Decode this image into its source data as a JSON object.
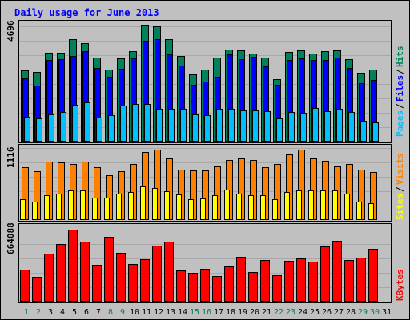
{
  "chart_data": {
    "type": "bar",
    "title": "Daily usage for June 2013",
    "days": [
      "1",
      "2",
      "3",
      "4",
      "5",
      "6",
      "7",
      "8",
      "9",
      "10",
      "11",
      "12",
      "13",
      "14",
      "15",
      "16",
      "17",
      "18",
      "19",
      "20",
      "21",
      "22",
      "23",
      "24",
      "25",
      "26",
      "27",
      "28",
      "29",
      "30",
      "31"
    ],
    "weekend_days": [
      "1",
      "2",
      "8",
      "9",
      "15",
      "16",
      "22",
      "23",
      "29",
      "30"
    ],
    "panels": [
      {
        "id": "hits_files_pages",
        "ymax": 4696,
        "ymax_label": "4696",
        "series": [
          {
            "name": "Hits",
            "color": "#00805c",
            "values": [
              2790,
              2730,
              3500,
              3500,
              4040,
              3870,
              3300,
              2830,
              3290,
              3570,
              4600,
              4540,
              4040,
              3380,
              2640,
              2850,
              3300,
              3630,
              3580,
              3480,
              3300,
              2450,
              3520,
              3600,
              3470,
              3560,
              3600,
              3260,
              2700,
              2840,
              0
            ]
          },
          {
            "name": "Files",
            "color": "#0000ff",
            "values": [
              2490,
              2200,
              3210,
              3240,
              3380,
              3550,
              2900,
              2550,
              2880,
              3270,
              3970,
              4040,
              3440,
              3000,
              2250,
              2350,
              2550,
              3430,
              3250,
              3340,
              2950,
              2230,
              3220,
              3290,
              3230,
              3200,
              3320,
              2890,
              2310,
              2420,
              0
            ]
          },
          {
            "name": "Pages",
            "color": "#00bfff",
            "values": [
              980,
              910,
              1060,
              1170,
              1450,
              1560,
              950,
              1030,
              1430,
              1480,
              1490,
              1300,
              1300,
              1300,
              1060,
              1040,
              1300,
              1280,
              1230,
              1220,
              1190,
              920,
              1170,
              1130,
              1310,
              1190,
              1280,
              1170,
              830,
              770,
              0
            ]
          }
        ]
      },
      {
        "id": "visits_sites",
        "ymax": 1116,
        "ymax_label": "1116",
        "series": [
          {
            "name": "Visits",
            "color": "#ff8000",
            "values": [
              805,
              743,
              886,
              870,
              852,
              886,
              805,
              681,
              743,
              848,
              1030,
              1070,
              930,
              770,
              750,
              750,
              815,
              908,
              930,
              908,
              800,
              845,
              990,
              1070,
              930,
              893,
              810,
              845,
              760,
              730,
              0
            ]
          },
          {
            "name": "Sites",
            "color": "#ffff00",
            "values": [
              315,
              285,
              370,
              400,
              450,
              450,
              335,
              340,
              400,
              430,
              505,
              480,
              440,
              385,
              320,
              330,
              375,
              460,
              400,
              380,
              380,
              320,
              430,
              450,
              450,
              450,
              450,
              400,
              275,
              260,
              0
            ]
          }
        ]
      },
      {
        "id": "kbytes",
        "ymax": 664088,
        "ymax_label": "664088",
        "series": [
          {
            "name": "KBytes",
            "color": "#ff0000",
            "values": [
              280000,
              220000,
              418000,
              500000,
              628000,
              525000,
              325000,
              565000,
              427000,
              330000,
              367000,
              486000,
              525000,
              275000,
              250000,
              285000,
              225000,
              310000,
              393000,
              260000,
              362000,
              232000,
              360000,
              375000,
              347000,
              480000,
              530000,
              362000,
              387000,
              463000,
              0
            ]
          }
        ]
      }
    ]
  }
}
